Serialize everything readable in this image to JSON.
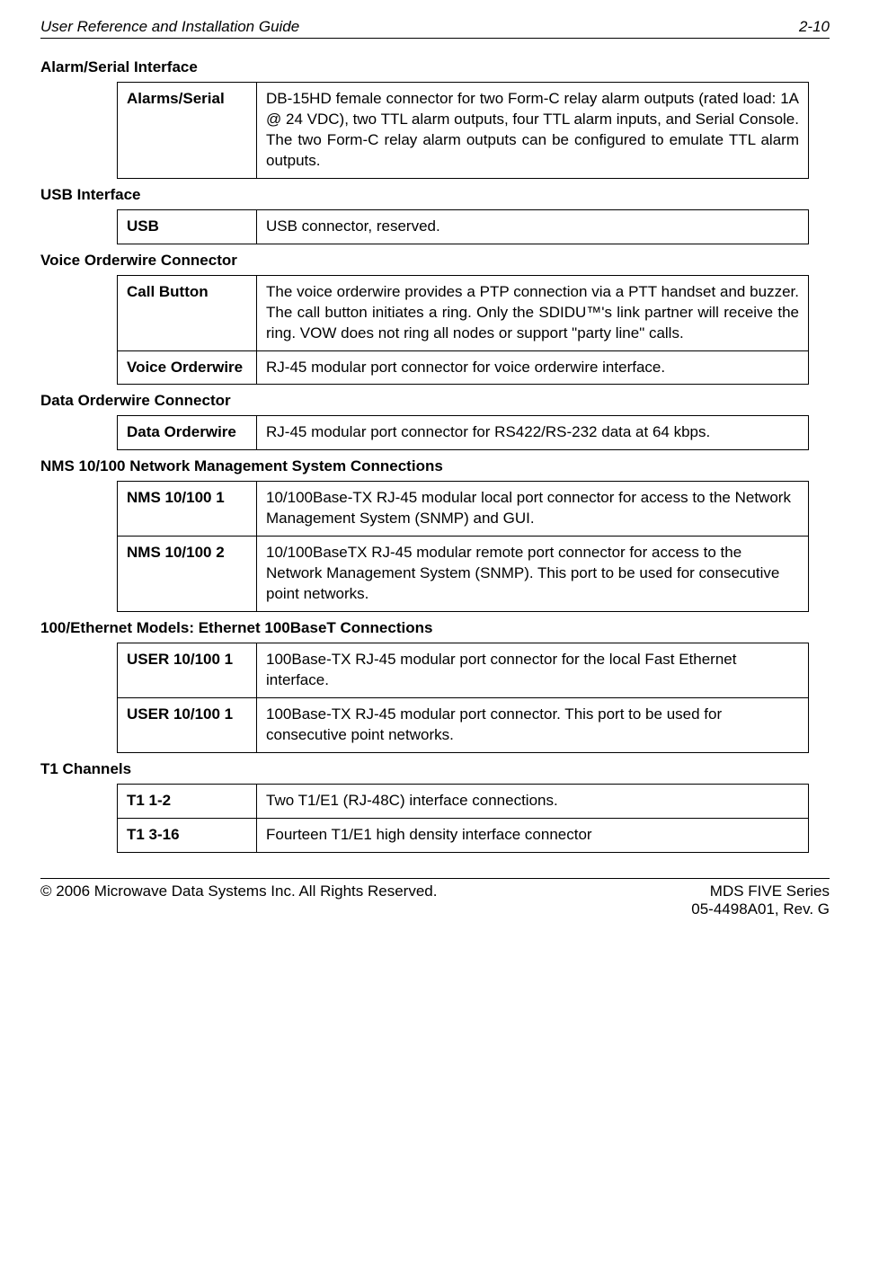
{
  "header": {
    "title": "User Reference and Installation Guide",
    "page": "2-10"
  },
  "sections": [
    {
      "heading": "Alarm/Serial Interface",
      "table_class": "justify",
      "rows": [
        {
          "label": "Alarms/Serial",
          "desc": "DB-15HD female connector for two Form-C relay alarm outputs (rated load: 1A @ 24 VDC), two TTL alarm outputs, four TTL alarm inputs, and Serial Console. The two Form-C relay alarm outputs can be configured to emulate TTL alarm outputs."
        }
      ]
    },
    {
      "heading": "USB Interface",
      "table_class": "left",
      "rows": [
        {
          "label": "USB",
          "desc": "USB connector, reserved."
        }
      ]
    },
    {
      "heading": "Voice Orderwire Connector",
      "table_class": "justify",
      "rows": [
        {
          "label": "Call Button",
          "desc": "The voice orderwire provides a PTP connection via a PTT handset and buzzer.  The call button initiates a ring.  Only the SDIDU™'s link partner will receive the ring.  VOW does not ring all nodes or support \"party line\" calls."
        },
        {
          "label": "Voice Orderwire",
          "desc": "RJ-45 modular port connector for voice orderwire interface."
        }
      ]
    },
    {
      "heading": "Data Orderwire Connector",
      "table_class": "justify",
      "rows": [
        {
          "label": "Data Orderwire",
          "desc": "RJ-45 modular port connector for RS422/RS-232 data at 64 kbps."
        }
      ]
    },
    {
      "heading": "NMS 10/100 Network Management System Connections",
      "table_class": "left",
      "rows": [
        {
          "label": "NMS 10/100 1",
          "desc": "10/100Base-TX RJ-45 modular local port connector for access to the Network Management System (SNMP) and GUI."
        },
        {
          "label": "NMS 10/100 2",
          "desc": "10/100BaseTX RJ-45 modular remote port connector for access to the Network Management System (SNMP). This port to be used for consecutive point networks."
        }
      ]
    },
    {
      "heading": "100/Ethernet Models: Ethernet 100BaseT Connections",
      "table_class": "left",
      "rows": [
        {
          "label": "USER 10/100 1",
          "desc": "100Base-TX RJ-45 modular port connector for the local Fast Ethernet interface."
        },
        {
          "label": "USER 10/100 1",
          "desc": "100Base-TX RJ-45 modular port connector.  This port to be used for consecutive point networks."
        }
      ]
    },
    {
      "heading": "T1 Channels",
      "table_class": "left",
      "rows": [
        {
          "label": "T1 1-2",
          "desc": "Two T1/E1 (RJ-48C) interface connections."
        },
        {
          "label": "T1 3-16",
          "desc": "Fourteen T1/E1 high density interface connector"
        }
      ]
    }
  ],
  "footer": {
    "copyright": "© 2006 Microwave Data Systems Inc.  All Rights Reserved.",
    "series": "MDS FIVE Series",
    "rev": "05-4498A01, Rev. G"
  }
}
